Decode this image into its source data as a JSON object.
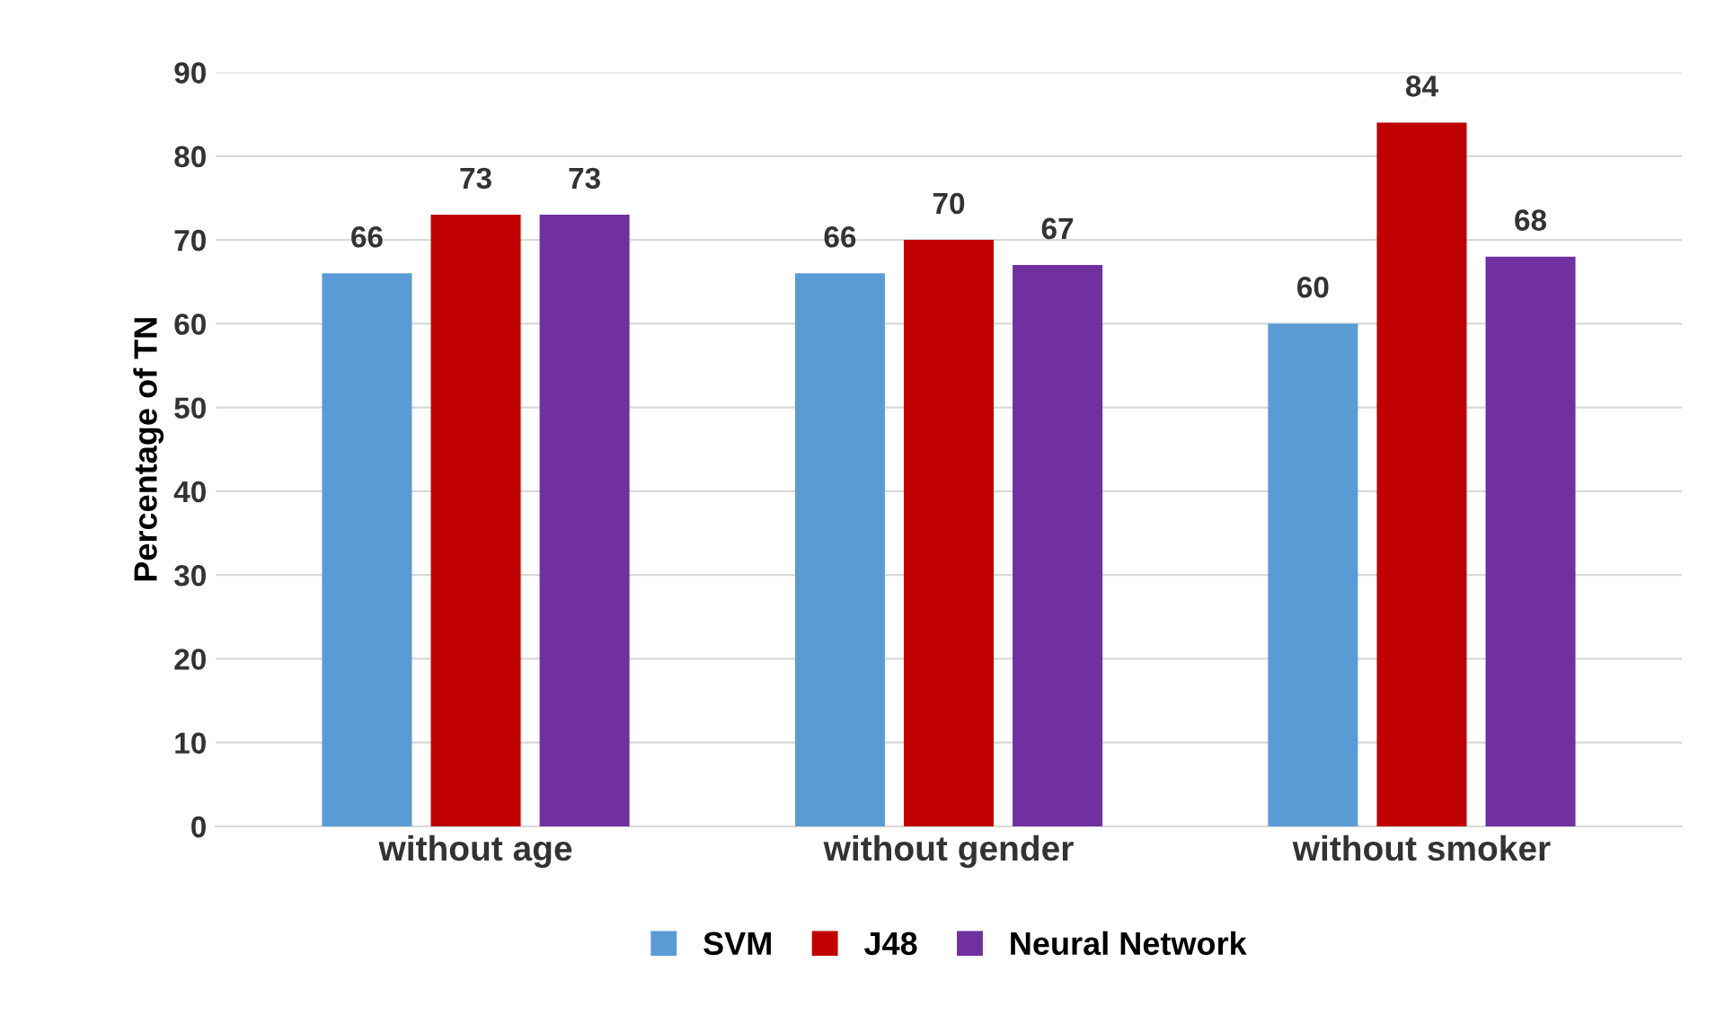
{
  "chart_data": {
    "type": "bar",
    "ylabel": "Percentage of TN",
    "categories": [
      "without age",
      "without gender",
      "without smoker"
    ],
    "series": [
      {
        "name": "SVM",
        "color": "#5b9bd5",
        "values": [
          66,
          66,
          60
        ]
      },
      {
        "name": "J48",
        "color": "#c00000",
        "values": [
          73,
          70,
          84
        ]
      },
      {
        "name": "Neural Network",
        "color": "#7030a0",
        "values": [
          73,
          67,
          68
        ]
      }
    ],
    "ylim": [
      0,
      90
    ],
    "yticks": [
      0,
      10,
      20,
      30,
      40,
      50,
      60,
      70,
      80,
      90
    ],
    "grid": "y",
    "legend": "bottom",
    "data_labels": true
  }
}
